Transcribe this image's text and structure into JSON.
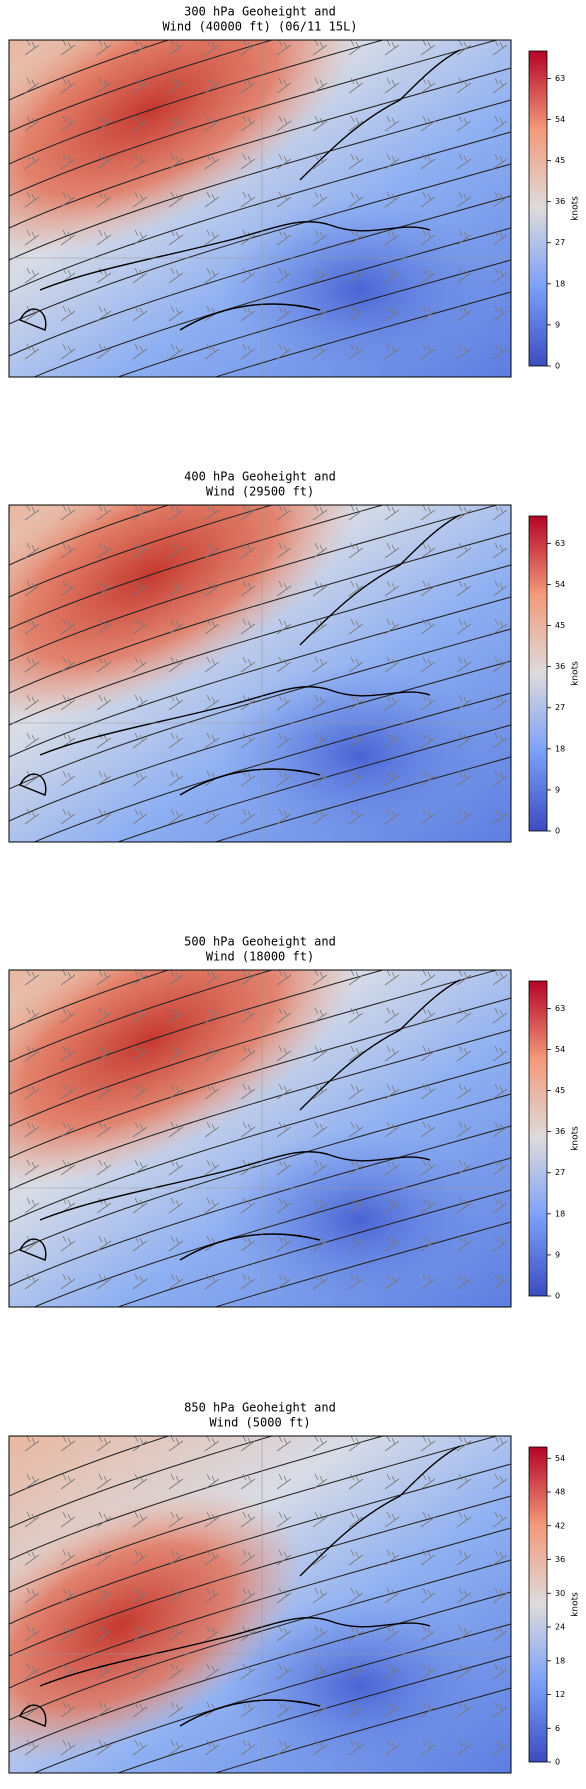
{
  "panels": [
    {
      "title": [
        "300 hPa Geoheight and",
        "Wind (40000 ft)  (06/11 15L)"
      ],
      "colorbar": {
        "label": "knots",
        "range": [
          0,
          69
        ],
        "ticks": [
          0,
          9,
          18,
          27,
          36,
          45,
          54,
          63
        ]
      }
    },
    {
      "title": [
        "400 hPa Geoheight and",
        "Wind (29500 ft)"
      ],
      "colorbar": {
        "label": "knots",
        "range": [
          0,
          69
        ],
        "ticks": [
          0,
          9,
          18,
          27,
          36,
          45,
          54,
          63
        ]
      }
    },
    {
      "title": [
        "500 hPa Geoheight and",
        "Wind (18000 ft)"
      ],
      "colorbar": {
        "label": "knots",
        "range": [
          0,
          69
        ],
        "ticks": [
          0,
          9,
          18,
          27,
          36,
          45,
          54,
          63
        ]
      }
    },
    {
      "title": [
        "850 hPa Geoheight and",
        "Wind (5000 ft)"
      ],
      "colorbar": {
        "label": "knots",
        "range": [
          0,
          56
        ],
        "ticks": [
          0,
          6,
          12,
          18,
          24,
          30,
          36,
          42,
          48,
          54
        ]
      }
    }
  ]
}
